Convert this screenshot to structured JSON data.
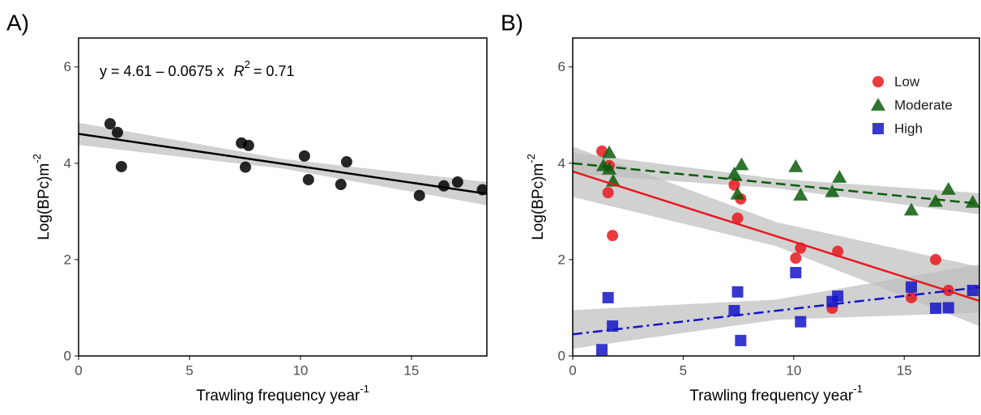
{
  "chart_data": [
    {
      "type": "scatter",
      "panel_label": "A)",
      "annotation": "y = 4.61 – 0.0675 x",
      "r2_text": "R",
      "r2_exponent": "2",
      "r2_value": "= 0.71",
      "x_label": "Trawling frequency year",
      "x_label_exponent": "-1",
      "y_label": "Log(BPc)m",
      "y_label_exponent": "-2",
      "xlim": [
        0,
        18.4
      ],
      "ylim": [
        0,
        6.6
      ],
      "xticks": [
        0,
        5,
        10,
        15
      ],
      "yticks": [
        0,
        2,
        4,
        6
      ],
      "series": [
        {
          "color": "#000000",
          "marker": "circle",
          "linestyle": "solid",
          "x": [
            1.42,
            1.75,
            1.93,
            7.34,
            7.66,
            7.52,
            10.18,
            10.36,
            12.08,
            11.82,
            15.36,
            16.46,
            17.08,
            18.2
          ],
          "values": [
            4.82,
            4.64,
            3.93,
            4.42,
            4.37,
            3.92,
            4.15,
            3.66,
            4.03,
            3.56,
            3.33,
            3.53,
            3.61,
            3.45
          ],
          "fit": {
            "intercept": 4.61,
            "slope": -0.0675,
            "band": {
              "x": [
                0,
                9.2,
                18.4
              ],
              "lower": [
                4.38,
                3.89,
                3.13
              ],
              "upper": [
                4.84,
                4.09,
                3.61
              ]
            }
          }
        }
      ]
    },
    {
      "type": "scatter",
      "panel_label": "B)",
      "x_label": "Trawling frequency year",
      "x_label_exponent": "-1",
      "y_label": "Log(BPc)m",
      "y_label_exponent": "-2",
      "xlim": [
        0,
        18.4
      ],
      "ylim": [
        0,
        6.6
      ],
      "xticks": [
        0,
        5,
        10,
        15
      ],
      "yticks": [
        0,
        2,
        4,
        6
      ],
      "legend": "top-right",
      "series": [
        {
          "name": "Low",
          "color": "#e8191f",
          "marker": "circle",
          "linestyle": "solid",
          "x": [
            1.32,
            1.65,
            1.6,
            1.8,
            7.31,
            7.6,
            7.46,
            10.09,
            10.31,
            11.99,
            11.74,
            15.32,
            16.42,
            17.0
          ],
          "values": [
            4.25,
            3.95,
            3.39,
            2.5,
            3.55,
            3.26,
            2.86,
            2.03,
            2.24,
            2.17,
            0.99,
            1.21,
            2.0,
            1.36
          ],
          "fit": {
            "intercept": 3.83,
            "slope": -0.146,
            "band": {
              "x": [
                0,
                9.2,
                18.4
              ],
              "lower": [
                3.3,
                2.28,
                0.62
              ],
              "upper": [
                4.35,
                2.78,
                1.85
              ]
            }
          }
        },
        {
          "name": "Moderate",
          "color": "#0b5c0b",
          "marker": "triangle",
          "linestyle": "dashed",
          "x": [
            1.65,
            1.39,
            1.65,
            1.83,
            7.31,
            7.64,
            7.46,
            10.09,
            10.31,
            12.07,
            11.74,
            15.32,
            16.42,
            17.0,
            18.1
          ],
          "values": [
            4.22,
            3.95,
            3.88,
            3.63,
            3.78,
            3.97,
            3.36,
            3.93,
            3.34,
            3.71,
            3.41,
            3.03,
            3.21,
            3.46,
            3.19
          ],
          "fit": {
            "intercept": 4.0,
            "slope": -0.0457,
            "band": {
              "x": [
                0,
                9.2,
                18.4
              ],
              "lower": [
                3.78,
                3.48,
                2.94
              ],
              "upper": [
                4.22,
                3.68,
                3.38
              ]
            }
          }
        },
        {
          "name": "High",
          "color": "#1515c8",
          "marker": "square",
          "linestyle": "dashdot",
          "x": [
            1.32,
            1.6,
            1.8,
            7.31,
            7.46,
            7.6,
            10.09,
            10.31,
            11.74,
            11.99,
            15.32,
            16.42,
            17.0,
            18.1
          ],
          "values": [
            0.13,
            1.21,
            0.62,
            0.94,
            1.33,
            0.32,
            1.73,
            0.71,
            1.13,
            1.24,
            1.43,
            0.99,
            1.0,
            1.36
          ],
          "fit": {
            "intercept": 0.45,
            "slope": 0.053,
            "band": {
              "x": [
                0,
                9.2,
                18.4
              ],
              "lower": [
                0.15,
                0.75,
                0.9
              ],
              "upper": [
                0.95,
                1.17,
                1.9
              ]
            }
          }
        }
      ]
    }
  ]
}
